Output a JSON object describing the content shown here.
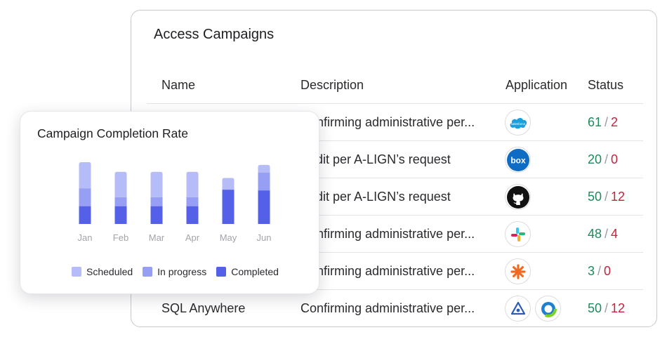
{
  "campaigns": {
    "title": "Access Campaigns",
    "columns": {
      "name": "Name",
      "description": "Description",
      "application": "Application",
      "status": "Status"
    },
    "rows": [
      {
        "name": "",
        "description": "Confirming administrative per...",
        "apps": [
          "salesforce-icon"
        ],
        "completed": "61",
        "remaining": "2"
      },
      {
        "name": "",
        "description": "Audit per A-LIGN’s request",
        "apps": [
          "box-icon"
        ],
        "completed": "20",
        "remaining": "0"
      },
      {
        "name": "",
        "description": "Audit per A-LIGN’s request",
        "apps": [
          "github-icon"
        ],
        "completed": "50",
        "remaining": "12"
      },
      {
        "name": "",
        "description": "Confirming administrative per...",
        "apps": [
          "slack-icon"
        ],
        "completed": "48",
        "remaining": "4"
      },
      {
        "name": "",
        "description": "Confirming administrative per...",
        "apps": [
          "asterisk-app-icon"
        ],
        "completed": "3",
        "remaining": "0"
      },
      {
        "name": "SQL Anywhere",
        "description": "Confirming administrative per...",
        "apps": [
          "triangle-eye-icon",
          "ring-app-icon"
        ],
        "completed": "50",
        "remaining": "12"
      }
    ],
    "slash": "/",
    "colors": {
      "completed": "#1f8a5b",
      "remaining": "#c4233d"
    },
    "brand": {
      "salesforce": "#1ba0dc",
      "box": "#0f6cc4",
      "github": "#111111",
      "orange": "#f26a21",
      "sql": "#2b5bb8",
      "ring": "#19a6a0"
    }
  },
  "chart": {
    "title": "Campaign Completion Rate",
    "legend": [
      "Scheduled",
      "In progress",
      "Completed"
    ],
    "colors": {
      "scheduled": "#b6bcf7",
      "in_progress": "#969ff3",
      "completed": "#5560e8"
    }
  },
  "chart_data": {
    "type": "bar",
    "title": "Campaign Completion Rate",
    "stacked": true,
    "categories": [
      "Jan",
      "Feb",
      "Mar",
      "Apr",
      "May",
      "Jun"
    ],
    "series": [
      {
        "name": "Completed",
        "values": [
          26,
          26,
          26,
          26,
          50,
          49
        ]
      },
      {
        "name": "In progress",
        "values": [
          26,
          13,
          13,
          13,
          0,
          26
        ]
      },
      {
        "name": "Scheduled",
        "values": [
          38,
          37,
          37,
          37,
          17,
          11
        ]
      }
    ],
    "ylim": [
      0,
      90
    ],
    "grid": false,
    "legend_position": "bottom"
  }
}
